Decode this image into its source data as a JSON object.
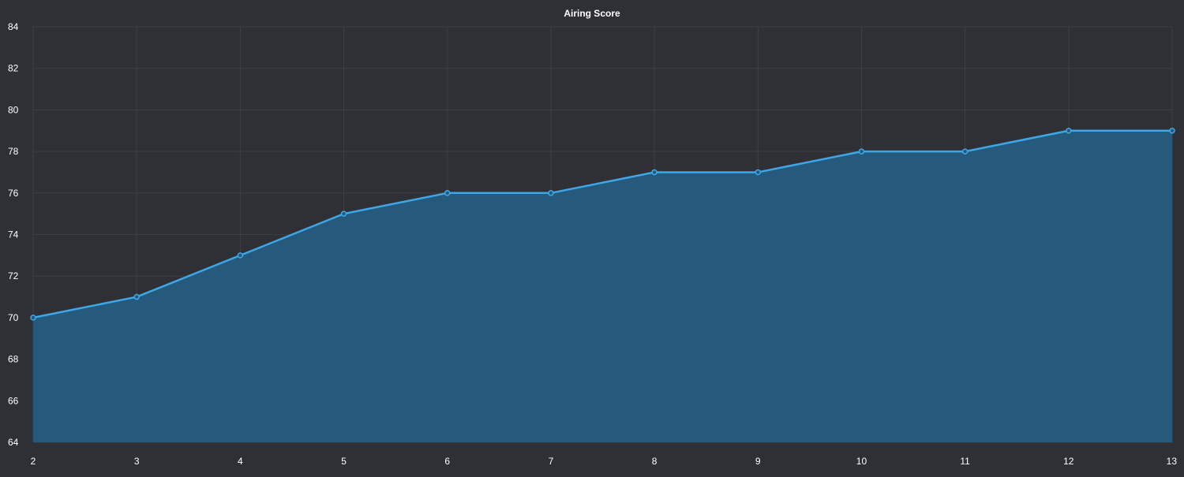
{
  "chart_data": {
    "type": "area",
    "title": "Airing Score",
    "xlabel": "",
    "ylabel": "",
    "x": [
      2,
      3,
      4,
      5,
      6,
      7,
      8,
      9,
      10,
      11,
      12,
      13
    ],
    "series": [
      {
        "values": [
          70,
          71,
          73,
          75,
          76,
          76,
          77,
          77,
          78,
          78,
          79,
          79
        ]
      }
    ],
    "xlim": [
      2,
      13
    ],
    "ylim": [
      64,
      84
    ],
    "yticks": [
      64,
      66,
      68,
      70,
      72,
      74,
      76,
      78,
      80,
      82,
      84
    ],
    "xticks": [
      2,
      3,
      4,
      5,
      6,
      7,
      8,
      9,
      10,
      11,
      12,
      13
    ],
    "grid": true,
    "legend": "none",
    "colors": {
      "background": "#2f3036",
      "grid": "#3e3f45",
      "line": "#3ea7e8",
      "fill": "#255a7c",
      "text": "#ffffff"
    }
  }
}
